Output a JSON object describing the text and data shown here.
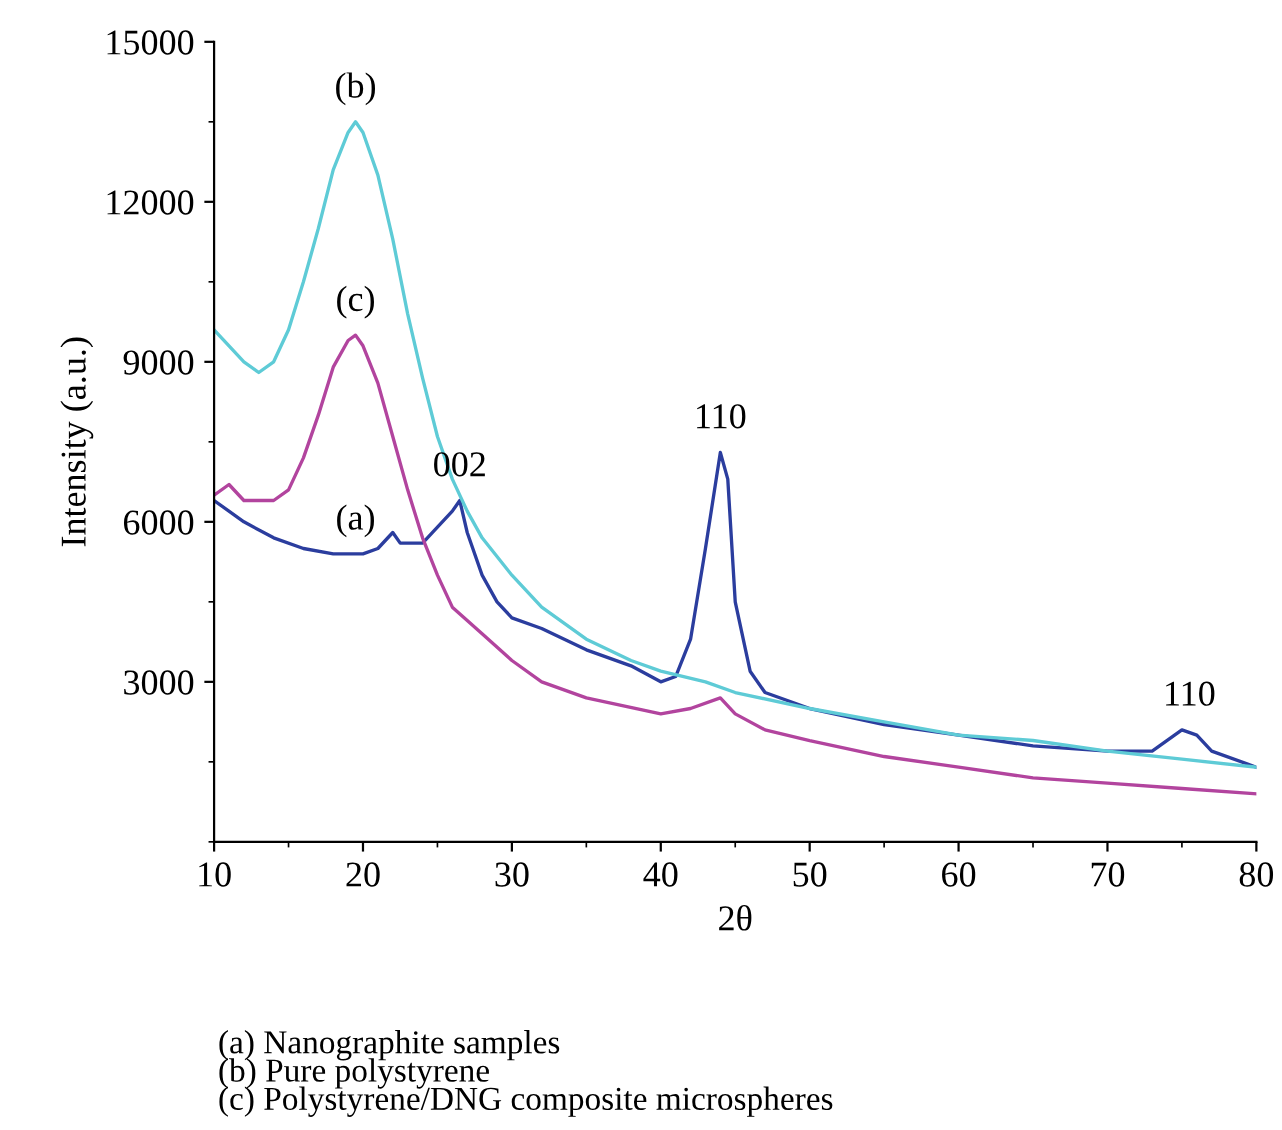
{
  "chart_data": {
    "type": "line",
    "xlabel": "2θ",
    "ylabel": "Intensity (a.u.)",
    "xlim": [
      10,
      80
    ],
    "xticks": [
      10,
      20,
      30,
      40,
      50,
      60,
      70,
      80
    ],
    "ylim": [
      0,
      15000
    ],
    "yticks": [
      3000,
      6000,
      9000,
      12000,
      15000
    ],
    "grid": false,
    "legend": false,
    "marker": "none",
    "line_style": "solid",
    "series": [
      {
        "color": "#2b3d9e",
        "x": [
          10,
          12,
          14,
          16,
          18,
          20,
          21,
          22,
          22.5,
          24,
          25,
          26,
          26.5,
          27,
          28,
          29,
          30,
          32,
          35,
          38,
          40,
          41,
          42,
          43,
          44,
          44.5,
          45,
          46,
          47,
          50,
          55,
          60,
          65,
          70,
          73,
          75,
          76,
          77,
          80
        ],
        "values": [
          6400,
          6000,
          5700,
          5500,
          5400,
          5400,
          5500,
          5800,
          5600,
          5600,
          5900,
          6200,
          6400,
          5800,
          5000,
          4500,
          4200,
          4000,
          3600,
          3300,
          3000,
          3100,
          3800,
          5500,
          7300,
          6800,
          4500,
          3200,
          2800,
          2500,
          2200,
          2000,
          1800,
          1700,
          1700,
          2100,
          2000,
          1700,
          1400
        ]
      },
      {
        "color": "#5ecbd6",
        "x": [
          10,
          11,
          12,
          13,
          14,
          15,
          16,
          17,
          18,
          19,
          19.5,
          20,
          21,
          22,
          23,
          24,
          25,
          26,
          27,
          28,
          30,
          32,
          35,
          38,
          40,
          43,
          45,
          50,
          55,
          60,
          65,
          70,
          75,
          80
        ],
        "values": [
          9600,
          9300,
          9000,
          8800,
          9000,
          9600,
          10500,
          11500,
          12600,
          13300,
          13500,
          13300,
          12500,
          11300,
          9900,
          8700,
          7600,
          6800,
          6200,
          5700,
          5000,
          4400,
          3800,
          3400,
          3200,
          3000,
          2800,
          2500,
          2250,
          2000,
          1900,
          1700,
          1550,
          1400
        ]
      },
      {
        "color": "#b2449e",
        "x": [
          10,
          11,
          12,
          14,
          15,
          16,
          17,
          18,
          19,
          19.5,
          20,
          21,
          22,
          23,
          24,
          25,
          26,
          28,
          30,
          32,
          35,
          40,
          42,
          44,
          45,
          47,
          50,
          55,
          60,
          65,
          70,
          75,
          80
        ],
        "values": [
          6500,
          6700,
          6400,
          6400,
          6600,
          7200,
          8000,
          8900,
          9400,
          9500,
          9300,
          8600,
          7600,
          6600,
          5700,
          5000,
          4400,
          3900,
          3400,
          3000,
          2700,
          2400,
          2500,
          2700,
          2400,
          2100,
          1900,
          1600,
          1400,
          1200,
          1100,
          1000,
          900
        ]
      }
    ],
    "annotations": [
      {
        "text": "(b)",
        "x": 19.5,
        "y": 13500
      },
      {
        "text": "(c)",
        "x": 19.5,
        "y": 9500
      },
      {
        "text": "(a)",
        "x": 19.5,
        "y": 5400
      },
      {
        "text": "002",
        "x": 26.5,
        "y": 6400
      },
      {
        "text": "110",
        "x": 44,
        "y": 7300
      },
      {
        "text": "110",
        "x": 75.5,
        "y": 2100
      },
      "(a) Nanographite samples",
      "(b) Pure polystyrene",
      "(c) Polystyrene/DNG composite microspheres"
    ]
  }
}
